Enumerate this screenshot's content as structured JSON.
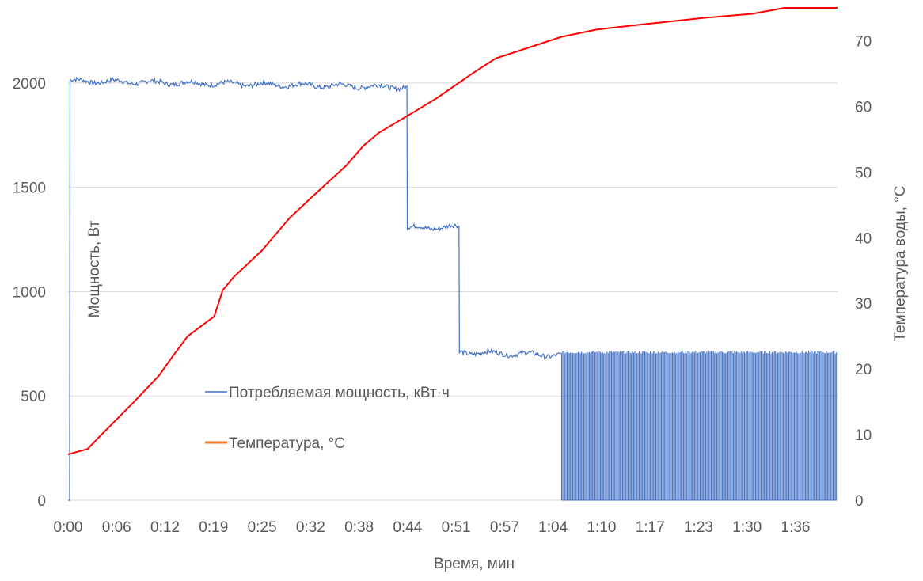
{
  "chart_data": {
    "type": "line",
    "xlabel": "Время, мин",
    "ylabel_left": "Мощность, Вт",
    "ylabel_right": "Температура воды, °C",
    "x_ticks": [
      "0:00",
      "0:06",
      "0:12",
      "0:19",
      "0:25",
      "0:32",
      "0:38",
      "0:44",
      "0:51",
      "0:57",
      "1:04",
      "1:10",
      "1:17",
      "1:23",
      "1:30",
      "1:36"
    ],
    "x_range_min": [
      0,
      99
    ],
    "y_left": {
      "ticks": [
        0,
        500,
        1000,
        1500,
        2000
      ],
      "range": [
        0,
        2360
      ]
    },
    "y_right": {
      "ticks": [
        0,
        10,
        20,
        30,
        40,
        50,
        60,
        70
      ],
      "range": [
        0,
        75
      ]
    },
    "grid": true,
    "legend_position": "center",
    "colors": {
      "power": "#4472C4",
      "temperature": "#FF0000",
      "legend_temperature": "#ED7D31",
      "grid": "#D9D9D9",
      "text": "#595959"
    },
    "series": [
      {
        "name": "Потребляемая мощность, кВт·ч",
        "axis": "left",
        "segments": [
          {
            "x": [
              0.0,
              0.2,
              0.25,
              43.6
            ],
            "y": [
              0,
              0,
              2010,
              1980
            ]
          },
          {
            "x": [
              43.6,
              43.65,
              50.3
            ],
            "y": [
              1980,
              1305,
              1310
            ]
          },
          {
            "x": [
              50.3,
              50.35,
              63.5
            ],
            "y": [
              1310,
              710,
              695
            ]
          }
        ],
        "cycling": {
          "x_start": 63.5,
          "x_end": 98.9,
          "y_low": 0,
          "y_high": 710
        }
      },
      {
        "name": "Температура, °C",
        "axis": "right",
        "x": [
          0,
          2.5,
          4.3,
          8.5,
          11.7,
          13.5,
          15.4,
          18.8,
          19.9,
          21.3,
          24.9,
          28.5,
          31.2,
          35.8,
          38.0,
          40.0,
          44.3,
          47.5,
          52.0,
          55.0,
          63.5,
          68.0,
          74.0,
          82.0,
          88.0,
          92.2,
          99.0
        ],
        "y": [
          7,
          7.8,
          10,
          15,
          19,
          22,
          25,
          28,
          32,
          34,
          38,
          43,
          46,
          51,
          54,
          56,
          59,
          61.3,
          65,
          67.3,
          70.6,
          71.7,
          72.5,
          73.5,
          74.1,
          75,
          75
        ]
      }
    ]
  }
}
